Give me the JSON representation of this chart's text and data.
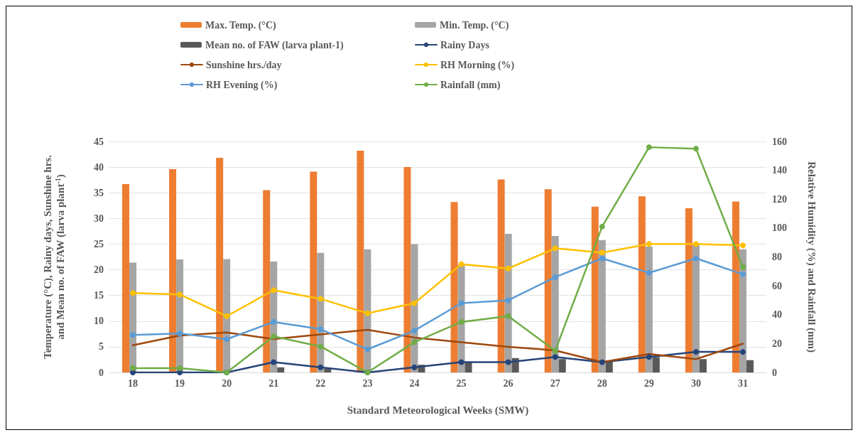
{
  "chart_data": {
    "type": "bar",
    "xlabel": "Standard Meteorological Weeks (SMW)",
    "ylabel": "Temperature (°C), Rainy days, Sunshine hrs.\nand Mean no. of FAW (larva plant$^{-1}$)",
    "y2label": "Relative Humidity (%) and Rainfall (mm)",
    "categories": [
      "18",
      "19",
      "20",
      "21",
      "22",
      "23",
      "24",
      "25",
      "26",
      "27",
      "28",
      "29",
      "30",
      "31"
    ],
    "series": [
      {
        "name": "Max. Temp. (°C)",
        "color": "#ed7d31",
        "values": [
          36.7,
          39.6,
          41.8,
          35.5,
          39.1,
          43.2,
          40.0,
          33.2,
          37.6,
          35.7,
          32.3,
          34.3,
          32.0,
          33.3
        ]
      },
      {
        "name": "Min. Temp. (°C)",
        "color": "#a5a5a5",
        "values": [
          21.4,
          22.0,
          22.1,
          21.6,
          23.3,
          24.0,
          25.0,
          21.0,
          27.0,
          26.6,
          25.8,
          24.5,
          25.0,
          24.0
        ]
      },
      {
        "name": "Mean no. of FAW (larva plant-1)",
        "color": "#595959",
        "values": [
          0,
          0,
          0,
          1.0,
          0.8,
          null,
          1.5,
          2.0,
          2.8,
          2.6,
          2.2,
          3.0,
          2.6,
          2.4
        ]
      },
      {
        "name": "Rainy Days",
        "type": "line",
        "marker": "circle",
        "color": "#264478",
        "values": [
          0,
          0,
          0,
          2,
          1,
          0,
          1,
          2,
          2,
          3,
          2,
          3,
          4,
          4
        ]
      },
      {
        "name": "Sunshine hrs./day",
        "type": "line",
        "marker": "none",
        "color": "#9e480e",
        "values": [
          5.3,
          7.2,
          7.8,
          6.5,
          7.4,
          8.3,
          6.8,
          5.9,
          5.0,
          4.3,
          2.0,
          3.6,
          2.6,
          5.6
        ]
      },
      {
        "name": "RH Morning (%)",
        "type": "line",
        "marker": "circle",
        "axis": "y2",
        "color": "#ffc000",
        "values": [
          55,
          54,
          39,
          57,
          51,
          41,
          48,
          75,
          72,
          86,
          83,
          89,
          89,
          88
        ]
      },
      {
        "name": "RH Evening (%)",
        "type": "line",
        "marker": "circle",
        "axis": "y2",
        "color": "#5b9bd5",
        "values": [
          26,
          27,
          23,
          35,
          30,
          16,
          29,
          48,
          50,
          66,
          79,
          69,
          79,
          68
        ]
      },
      {
        "name": "Rainfall (mm)",
        "type": "line",
        "marker": "circle",
        "axis": "y2",
        "color": "#70ad47",
        "values": [
          3,
          3,
          0,
          25,
          18,
          0,
          21,
          35,
          39,
          15,
          101,
          156,
          155,
          73
        ]
      }
    ],
    "ylim": [
      0,
      45
    ],
    "yticks": [
      0,
      5,
      10,
      15,
      20,
      25,
      30,
      35,
      40,
      45
    ],
    "y2lim": [
      0,
      160
    ],
    "y2ticks": [
      0,
      20,
      40,
      60,
      80,
      100,
      120,
      140,
      160
    ],
    "grid": "y",
    "legend": "top"
  }
}
